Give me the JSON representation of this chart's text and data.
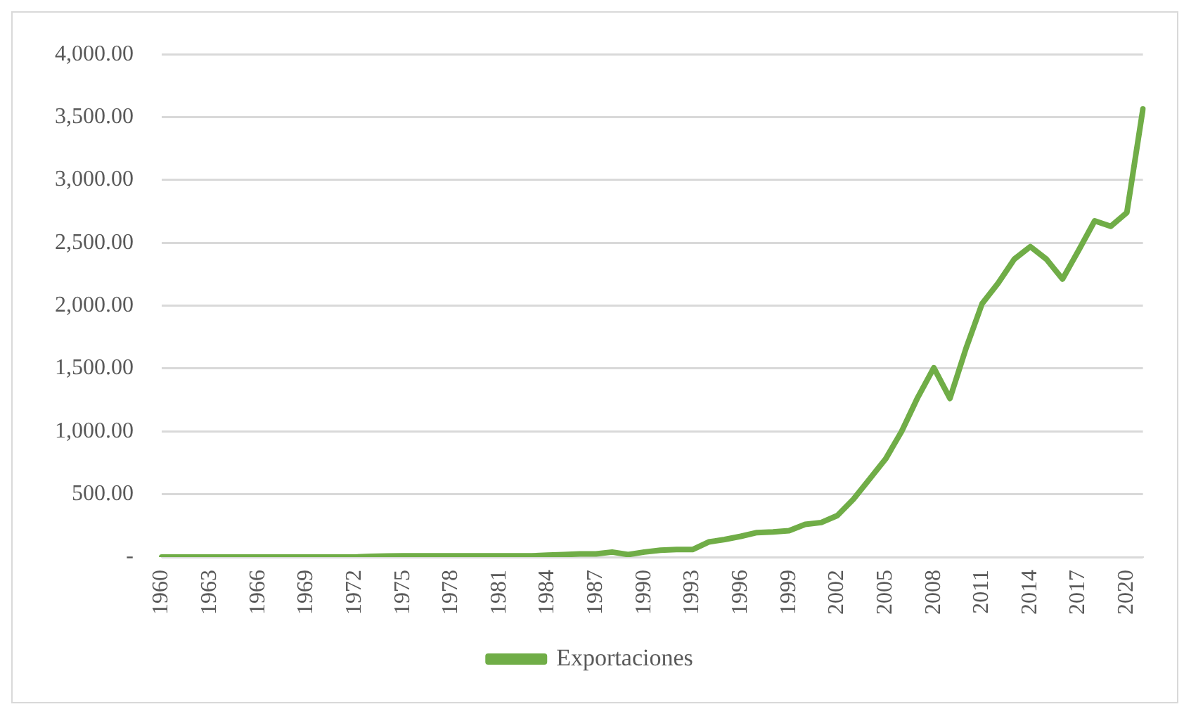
{
  "chart_data": {
    "type": "line",
    "categories": [
      "1960",
      null,
      null,
      "1963",
      null,
      null,
      "1966",
      null,
      null,
      "1969",
      null,
      null,
      "1972",
      null,
      null,
      "1975",
      null,
      null,
      "1978",
      null,
      null,
      "1981",
      null,
      null,
      "1984",
      null,
      null,
      "1987",
      null,
      null,
      "1990",
      null,
      null,
      "1993",
      null,
      null,
      "1996",
      null,
      null,
      "1999",
      null,
      null,
      "2002",
      null,
      null,
      "2005",
      null,
      null,
      "2008",
      null,
      null,
      "2011",
      null,
      null,
      "2014",
      null,
      null,
      "2017",
      null,
      null,
      "2020",
      null
    ],
    "series": [
      {
        "name": "Exportaciones",
        "color": "#70ad47",
        "values": [
          0,
          0,
          0,
          0,
          0,
          0,
          0,
          0,
          0,
          0,
          0,
          0,
          0,
          5,
          8,
          10,
          10,
          10,
          10,
          10,
          10,
          10,
          10,
          10,
          15,
          20,
          25,
          25,
          40,
          20,
          40,
          55,
          60,
          60,
          120,
          140,
          165,
          195,
          200,
          210,
          260,
          275,
          330,
          460,
          620,
          780,
          1000,
          1270,
          1506,
          1262,
          1660,
          2016,
          2180,
          2370,
          2470,
          2370,
          2212,
          2440,
          2675,
          2631,
          2741,
          3565
        ]
      }
    ],
    "ylim": [
      0,
      4000
    ],
    "yticks": [
      {
        "value": 0,
        "label": "-"
      },
      {
        "value": 500,
        "label": "500.00"
      },
      {
        "value": 1000,
        "label": "1,000.00"
      },
      {
        "value": 1500,
        "label": "1,500.00"
      },
      {
        "value": 2000,
        "label": "2,000.00"
      },
      {
        "value": 2500,
        "label": "2,500.00"
      },
      {
        "value": 3000,
        "label": "3,000.00"
      },
      {
        "value": 3500,
        "label": "3,500.00"
      },
      {
        "value": 4000,
        "label": "4,000.00"
      }
    ],
    "grid": "y",
    "legend": "bottom",
    "marker": "none",
    "line_style": "solid"
  }
}
